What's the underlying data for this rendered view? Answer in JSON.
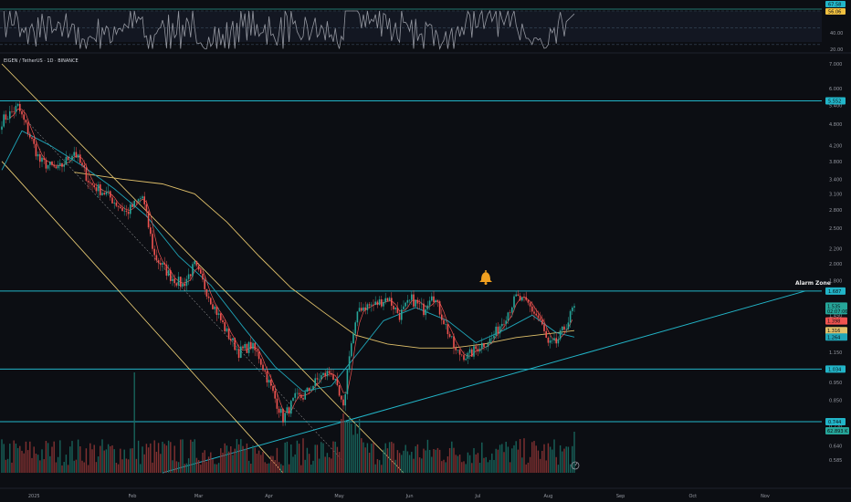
{
  "header": {
    "symbol_line": "EIGEN / TetherUS · 1D · BINANCE"
  },
  "colors": {
    "background": "#0c0e13",
    "up": "#26a69a",
    "down": "#ef5350",
    "level_line": "#22b5c8",
    "trend_line": "#22b5c8",
    "channel": "#f5d67a",
    "ma_long": "#e0c06a",
    "ma_short": "#1fa5b8",
    "ma_fast": "#ef5350",
    "rsi_line": "#9598a1"
  },
  "chart_data": {
    "type": "candlestick",
    "x_ticks": [
      "2025",
      "Feb",
      "Mar",
      "Apr",
      "May",
      "Jun",
      "Jul",
      "Aug",
      "Sep",
      "Oct",
      "Nov"
    ],
    "y_scale": "log",
    "y_ticks": [
      "7.000",
      "6.000",
      "5.400",
      "4.800",
      "4.200",
      "3.800",
      "3.400",
      "3.100",
      "2.800",
      "2.500",
      "2.200",
      "2.000",
      "1.800",
      "1.450",
      "1.150",
      "0.950",
      "0.850",
      "0.720",
      "0.640",
      "0.585"
    ],
    "horizontal_levels": [
      {
        "value": 5.552,
        "label": "5.552"
      },
      {
        "value": 1.687,
        "label": "1.687"
      },
      {
        "value": 1.034,
        "label": "1.034"
      },
      {
        "value": 0.744,
        "label": "0.744"
      }
    ],
    "price_labels": [
      {
        "value": 1.535,
        "label": "1.535",
        "sublabel": "02:07:06",
        "color": "#26a69a"
      },
      {
        "value": 1.398,
        "label": "1.398",
        "color": "#ef5350"
      },
      {
        "value": 1.316,
        "label": "1.316",
        "color": "#e0c06a"
      },
      {
        "value": 1.264,
        "label": "1.264",
        "color": "#1fa5b8"
      }
    ],
    "volume_label": "62.893 K",
    "annotation": {
      "text": "Alarm Zone"
    },
    "rsi": {
      "ticks": [
        "60.00",
        "40.00",
        "20.00"
      ],
      "labels": [
        "67.58",
        "56.06"
      ],
      "bands": [
        70,
        50,
        30
      ]
    },
    "anchors": [
      {
        "t": 0,
        "p": 4.9
      },
      {
        "t": 8,
        "p": 5.35
      },
      {
        "t": 13,
        "p": 4.6
      },
      {
        "t": 19,
        "p": 3.8
      },
      {
        "t": 28,
        "p": 3.6
      },
      {
        "t": 36,
        "p": 4.05
      },
      {
        "t": 44,
        "p": 3.3
      },
      {
        "t": 52,
        "p": 3.1
      },
      {
        "t": 62,
        "p": 2.75
      },
      {
        "t": 70,
        "p": 3.05
      },
      {
        "t": 76,
        "p": 2.1
      },
      {
        "t": 84,
        "p": 1.85
      },
      {
        "t": 90,
        "p": 1.75
      },
      {
        "t": 96,
        "p": 1.98
      },
      {
        "t": 104,
        "p": 1.6
      },
      {
        "t": 112,
        "p": 1.3
      },
      {
        "t": 118,
        "p": 1.15
      },
      {
        "t": 124,
        "p": 1.2
      },
      {
        "t": 128,
        "p": 1.12
      },
      {
        "t": 136,
        "p": 0.86
      },
      {
        "t": 140,
        "p": 0.76
      },
      {
        "t": 146,
        "p": 0.86
      },
      {
        "t": 150,
        "p": 0.87
      },
      {
        "t": 158,
        "p": 0.98
      },
      {
        "t": 164,
        "p": 1.02
      },
      {
        "t": 170,
        "p": 0.8
      },
      {
        "t": 173,
        "p": 1.15
      },
      {
        "t": 178,
        "p": 1.52
      },
      {
        "t": 186,
        "p": 1.55
      },
      {
        "t": 192,
        "p": 1.62
      },
      {
        "t": 198,
        "p": 1.45
      },
      {
        "t": 204,
        "p": 1.6
      },
      {
        "t": 210,
        "p": 1.5
      },
      {
        "t": 214,
        "p": 1.68
      },
      {
        "t": 220,
        "p": 1.4
      },
      {
        "t": 226,
        "p": 1.15
      },
      {
        "t": 232,
        "p": 1.12
      },
      {
        "t": 238,
        "p": 1.2
      },
      {
        "t": 244,
        "p": 1.25
      },
      {
        "t": 250,
        "p": 1.42
      },
      {
        "t": 256,
        "p": 1.62
      },
      {
        "t": 262,
        "p": 1.55
      },
      {
        "t": 268,
        "p": 1.4
      },
      {
        "t": 272,
        "p": 1.2
      },
      {
        "t": 276,
        "p": 1.22
      },
      {
        "t": 282,
        "p": 1.4
      },
      {
        "t": 285,
        "p": 1.55
      }
    ],
    "ma_long_path": [
      {
        "t": 36,
        "p": 3.55
      },
      {
        "t": 60,
        "p": 3.4
      },
      {
        "t": 80,
        "p": 3.3
      },
      {
        "t": 96,
        "p": 3.1
      },
      {
        "t": 112,
        "p": 2.6
      },
      {
        "t": 128,
        "p": 2.1
      },
      {
        "t": 144,
        "p": 1.72
      },
      {
        "t": 160,
        "p": 1.48
      },
      {
        "t": 176,
        "p": 1.28
      },
      {
        "t": 192,
        "p": 1.21
      },
      {
        "t": 208,
        "p": 1.18
      },
      {
        "t": 224,
        "p": 1.18
      },
      {
        "t": 240,
        "p": 1.21
      },
      {
        "t": 256,
        "p": 1.26
      },
      {
        "t": 272,
        "p": 1.29
      },
      {
        "t": 285,
        "p": 1.316
      }
    ],
    "ma_short_path": [
      {
        "t": 0,
        "p": 3.6
      },
      {
        "t": 10,
        "p": 4.6
      },
      {
        "t": 24,
        "p": 4.2
      },
      {
        "t": 40,
        "p": 3.7
      },
      {
        "t": 56,
        "p": 3.2
      },
      {
        "t": 72,
        "p": 2.7
      },
      {
        "t": 88,
        "p": 2.1
      },
      {
        "t": 104,
        "p": 1.75
      },
      {
        "t": 120,
        "p": 1.35
      },
      {
        "t": 136,
        "p": 1.05
      },
      {
        "t": 150,
        "p": 0.9
      },
      {
        "t": 164,
        "p": 0.93
      },
      {
        "t": 176,
        "p": 1.12
      },
      {
        "t": 190,
        "p": 1.4
      },
      {
        "t": 206,
        "p": 1.52
      },
      {
        "t": 222,
        "p": 1.4
      },
      {
        "t": 236,
        "p": 1.22
      },
      {
        "t": 250,
        "p": 1.32
      },
      {
        "t": 264,
        "p": 1.45
      },
      {
        "t": 276,
        "p": 1.3
      },
      {
        "t": 285,
        "p": 1.264
      }
    ],
    "channel_lines": [
      {
        "t1": 0,
        "p1": 7.0,
        "t2": 200,
        "p2": 0.54
      },
      {
        "t1": 0,
        "p1": 3.8,
        "t2": 140,
        "p2": 0.54
      }
    ],
    "trend_line": {
      "t1": 80,
      "p1": 0.54,
      "t2": 400,
      "p2": 1.687
    },
    "x_tick_t": [
      16,
      65,
      98,
      133,
      168,
      203,
      237,
      272,
      308,
      344,
      380
    ]
  }
}
